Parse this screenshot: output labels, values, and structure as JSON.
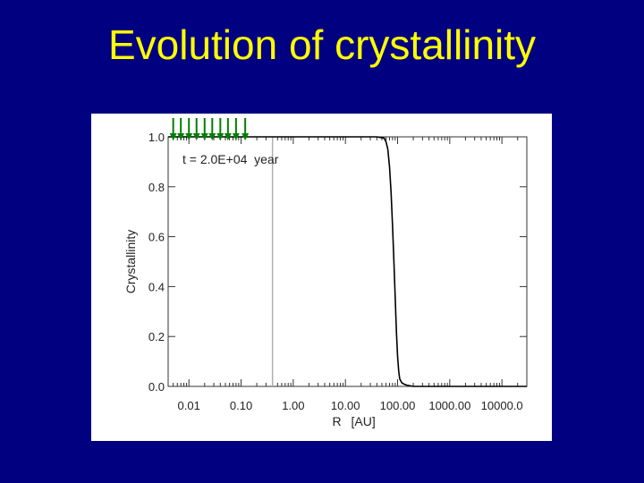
{
  "slide": {
    "title": "Evolution of crystallinity"
  },
  "chart_data": {
    "type": "line",
    "xlabel": "R",
    "xlabel_unit": "[AU]",
    "ylabel": "Crystallinity",
    "xscale": "log",
    "xlim": [
      0.004,
      30000
    ],
    "ylim": [
      0.0,
      1.0
    ],
    "x_ticks": [
      0.01,
      0.1,
      1,
      10,
      100,
      1000,
      10000
    ],
    "x_tick_labels": [
      "0.01",
      "0.10",
      "1.00",
      "10.00",
      "100.00",
      "1000.00",
      "10000.0"
    ],
    "y_ticks": [
      0.0,
      0.2,
      0.4,
      0.6,
      0.8,
      1.0
    ],
    "y_tick_labels": [
      "0.0",
      "0.2",
      "0.4",
      "0.6",
      "0.8",
      "1.0"
    ],
    "annotation": "t = 2.0E+04  year",
    "reference_line_x": 0.4,
    "arrow_markers_x": [
      0.005,
      0.007,
      0.01,
      0.014,
      0.02,
      0.028,
      0.04,
      0.056,
      0.08,
      0.12
    ],
    "colors": {
      "curve": "#000000",
      "reference_line": "#b0b0b0",
      "arrows": "#008000",
      "title": "#ffff00",
      "background": "#000080"
    },
    "series": [
      {
        "x": [
          0.004,
          0.01,
          0.1,
          1,
          10,
          40,
          55,
          60,
          65,
          70,
          75,
          80,
          85,
          90,
          95,
          100,
          105,
          110,
          120,
          130,
          150,
          200,
          500,
          1000,
          10000,
          30000
        ],
        "values": [
          1.0,
          1.0,
          1.0,
          1.0,
          1.0,
          1.0,
          0.995,
          0.98,
          0.95,
          0.88,
          0.78,
          0.64,
          0.5,
          0.36,
          0.22,
          0.12,
          0.06,
          0.03,
          0.015,
          0.01,
          0.005,
          0.0,
          0.0,
          0.0,
          0.0,
          0.0
        ]
      }
    ]
  }
}
